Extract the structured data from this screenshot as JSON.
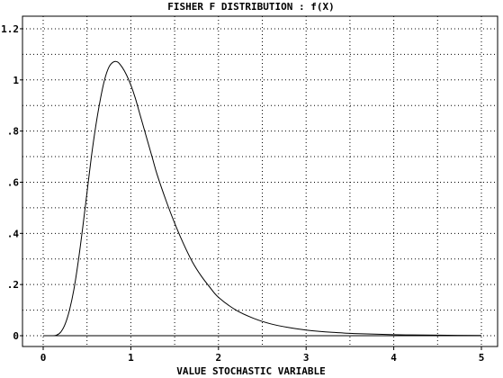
{
  "chart_data": {
    "type": "line",
    "title": "FISHER F DISTRIBUTION : f(X)",
    "xlabel": "VALUE STOCHASTIC VARIABLE",
    "ylabel": "",
    "xlim": [
      -0.3,
      5.1
    ],
    "ylim": [
      -0.05,
      1.22
    ],
    "x_ticks": [
      0,
      1,
      2,
      3,
      4,
      5
    ],
    "x_tick_labels": [
      "0",
      "1",
      "2",
      "3",
      "4",
      "5"
    ],
    "y_ticks": [
      0,
      0.2,
      0.4,
      0.6,
      0.8,
      1.0,
      1.2
    ],
    "y_tick_labels": [
      "0",
      ".2",
      ".4",
      ".6",
      ".8",
      "1",
      "1.2"
    ],
    "grid": true,
    "series": [
      {
        "x": [
          0.0,
          0.1,
          0.15,
          0.2,
          0.25,
          0.3,
          0.35,
          0.4,
          0.45,
          0.5,
          0.55,
          0.6,
          0.65,
          0.7,
          0.75,
          0.8,
          0.85,
          0.9,
          0.95,
          1.0,
          1.05,
          1.1,
          1.15,
          1.2,
          1.25,
          1.3,
          1.4,
          1.5,
          1.6,
          1.7,
          1.8,
          1.9,
          2.0,
          2.2,
          2.4,
          2.6,
          2.8,
          3.0,
          3.3,
          3.6,
          4.0,
          4.2,
          4.5,
          5.0
        ],
        "y": [
          0.0,
          0.0,
          0.002,
          0.014,
          0.045,
          0.1,
          0.18,
          0.29,
          0.42,
          0.56,
          0.7,
          0.82,
          0.92,
          1.0,
          1.05,
          1.07,
          1.07,
          1.05,
          1.02,
          0.98,
          0.93,
          0.87,
          0.81,
          0.75,
          0.69,
          0.63,
          0.53,
          0.44,
          0.36,
          0.29,
          0.235,
          0.19,
          0.15,
          0.1,
          0.068,
          0.046,
          0.032,
          0.022,
          0.013,
          0.008,
          0.004,
          0.003,
          0.002,
          0.001
        ]
      }
    ]
  }
}
